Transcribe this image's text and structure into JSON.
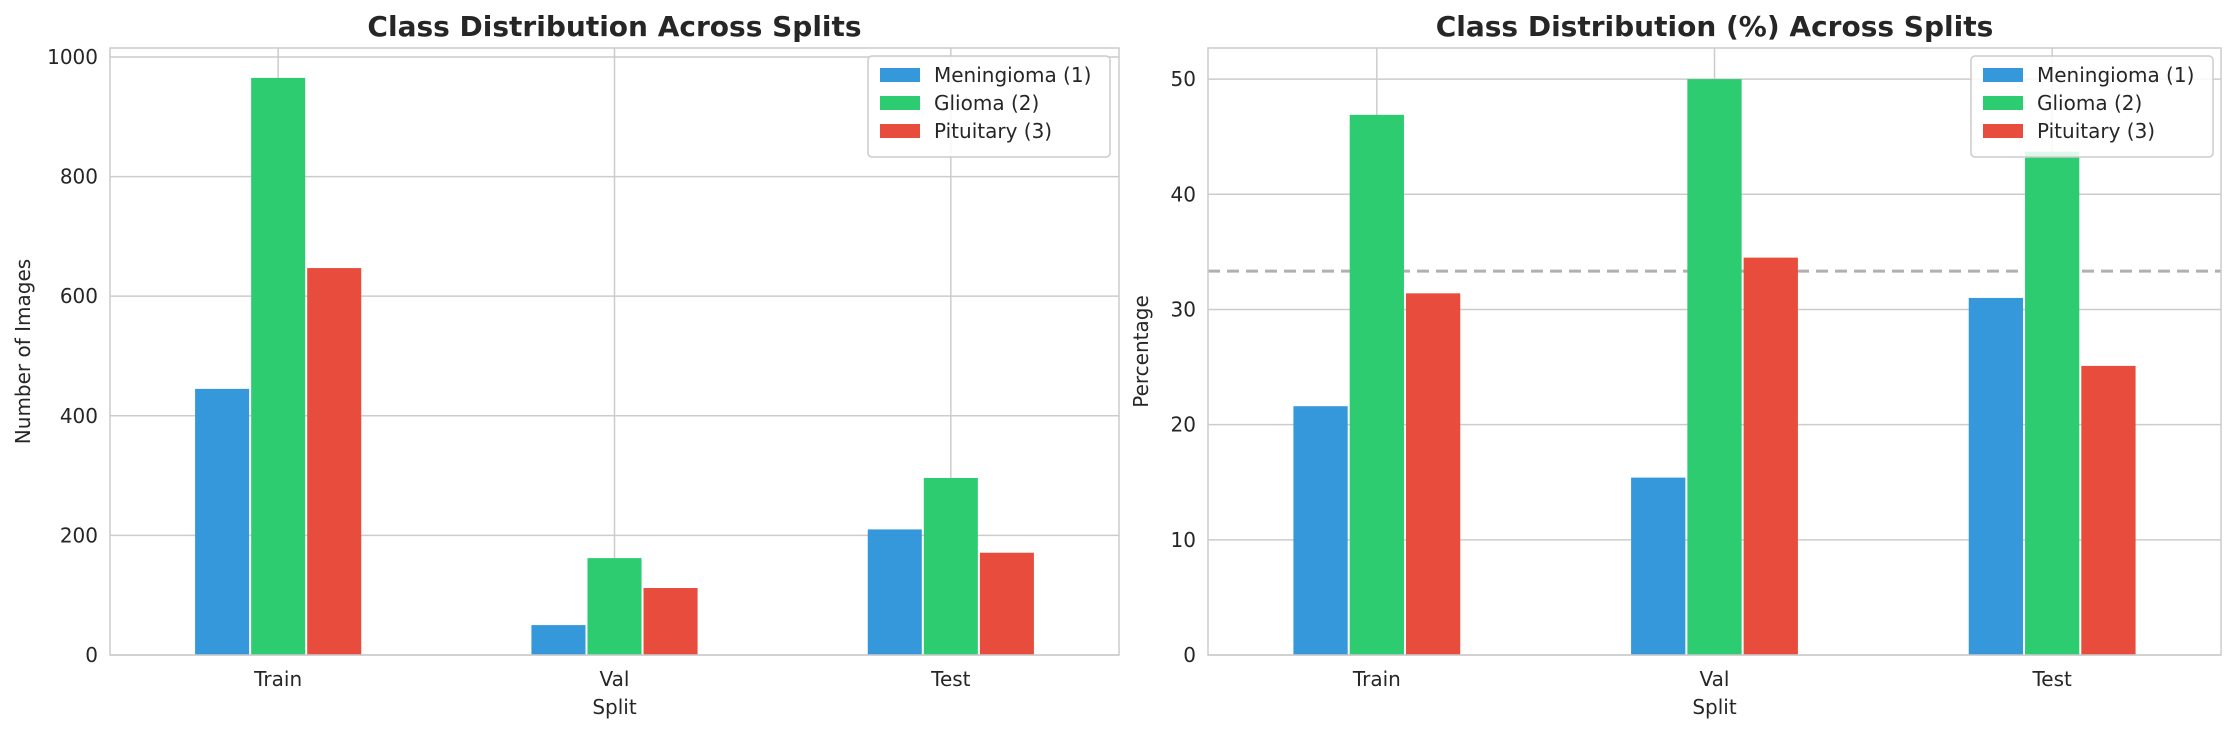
{
  "chart_data": [
    {
      "type": "bar",
      "title": "Class Distribution Across Splits",
      "xlabel": "Split",
      "ylabel": "Number of Images",
      "categories": [
        "Train",
        "Val",
        "Test"
      ],
      "ylim": [
        0,
        1015
      ],
      "yticks": [
        0,
        200,
        400,
        600,
        800,
        1000
      ],
      "grid": true,
      "legend": "top-right",
      "series": [
        {
          "name": "Meningioma (1)",
          "color": "#3498db",
          "values": [
            445,
            50,
            210
          ]
        },
        {
          "name": "Glioma (2)",
          "color": "#2ecc71",
          "values": [
            965,
            162,
            296
          ]
        },
        {
          "name": "Pituitary (3)",
          "color": "#e74c3c",
          "values": [
            647,
            112,
            171
          ]
        }
      ]
    },
    {
      "type": "bar",
      "title": "Class Distribution (%) Across Splits",
      "xlabel": "Split",
      "ylabel": "Percentage",
      "categories": [
        "Train",
        "Val",
        "Test"
      ],
      "ylim": [
        0,
        52.7
      ],
      "yticks": [
        0,
        10,
        20,
        30,
        40,
        50
      ],
      "grid": true,
      "legend": "top-right",
      "reference_line": {
        "y": 33.33,
        "style": "dashed",
        "color": "#b0b0b0"
      },
      "series": [
        {
          "name": "Meningioma (1)",
          "color": "#3498db",
          "values": [
            21.6,
            15.4,
            31.0
          ]
        },
        {
          "name": "Glioma (2)",
          "color": "#2ecc71",
          "values": [
            46.9,
            50.0,
            43.7
          ]
        },
        {
          "name": "Pituitary (3)",
          "color": "#e74c3c",
          "values": [
            31.4,
            34.5,
            25.1
          ]
        }
      ]
    }
  ]
}
